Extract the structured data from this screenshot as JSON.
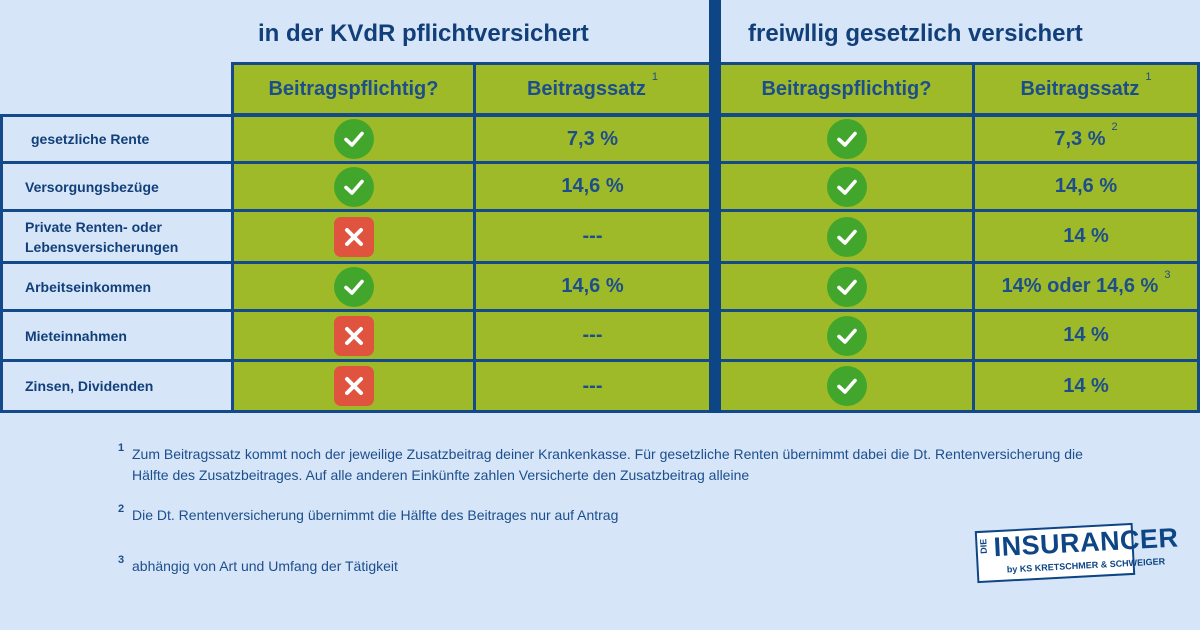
{
  "titles": {
    "left": "in der KVdR pflichtversichert",
    "right": "freiwllig gesetzlich versichert"
  },
  "headers": {
    "left_col1": "Beitragspflichtig?",
    "left_col2": "Beitragssatz",
    "left_col2_fn": "1",
    "right_col1": "Beitragspflichtig?",
    "right_col2": "Beitragssatz",
    "right_col2_fn": "1"
  },
  "rows": [
    {
      "label": "gesetzliche Rente",
      "kvdr_pflicht": "check",
      "kvdr_satz": "7,3 %",
      "kvdr_fn": "",
      "frei_pflicht": "check",
      "frei_satz": "7,3 %",
      "frei_fn": "2"
    },
    {
      "label": "Versorgungsbezüge",
      "kvdr_pflicht": "check",
      "kvdr_satz": "14,6 %",
      "kvdr_fn": "",
      "frei_pflicht": "check",
      "frei_satz": "14,6 %",
      "frei_fn": ""
    },
    {
      "label": "Private Renten- oder Lebensversicherungen",
      "kvdr_pflicht": "cross",
      "kvdr_satz": "---",
      "kvdr_fn": "",
      "frei_pflicht": "check",
      "frei_satz": "14 %",
      "frei_fn": ""
    },
    {
      "label": "Arbeitseinkommen",
      "kvdr_pflicht": "check",
      "kvdr_satz": "14,6 %",
      "kvdr_fn": "",
      "frei_pflicht": "check",
      "frei_satz": "14% oder 14,6 %",
      "frei_fn": "3"
    },
    {
      "label": "Mieteinnahmen",
      "kvdr_pflicht": "cross",
      "kvdr_satz": "---",
      "kvdr_fn": "",
      "frei_pflicht": "check",
      "frei_satz": "14 %",
      "frei_fn": ""
    },
    {
      "label": "Zinsen, Dividenden",
      "kvdr_pflicht": "cross",
      "kvdr_satz": "---",
      "kvdr_fn": "",
      "frei_pflicht": "check",
      "frei_satz": "14 %",
      "frei_fn": ""
    }
  ],
  "footnotes": [
    {
      "num": "1",
      "text": "Zum Beitragssatz kommt noch der jeweilige Zusatzbeitrag deiner Krankenkasse. Für gesetzliche Renten übernimmt dabei die Dt. Rentenversicherung die Hälfte des Zusatzbeitrages. Auf alle anderen Einkünfte zahlen Versicherte den Zusatzbeitrag alleine"
    },
    {
      "num": "2",
      "text": "Die Dt. Rentenversicherung übernimmt die Hälfte des Beitrages nur auf Antrag"
    },
    {
      "num": "3",
      "text": "abhängig von Art und Umfang der Tätigkeit"
    }
  ],
  "logo": {
    "small": "DIE",
    "main": "INSURANCER",
    "sub": "by KS KRETSCHMER & SCHWEIGER"
  },
  "colors": {
    "background": "#d6e6f8",
    "cell_green": "#9fba28",
    "border_blue": "#14498a",
    "check_green": "#43a62c",
    "cross_red": "#e0533e"
  },
  "icons": {
    "check": "check-circle-icon",
    "cross": "cross-square-icon"
  }
}
